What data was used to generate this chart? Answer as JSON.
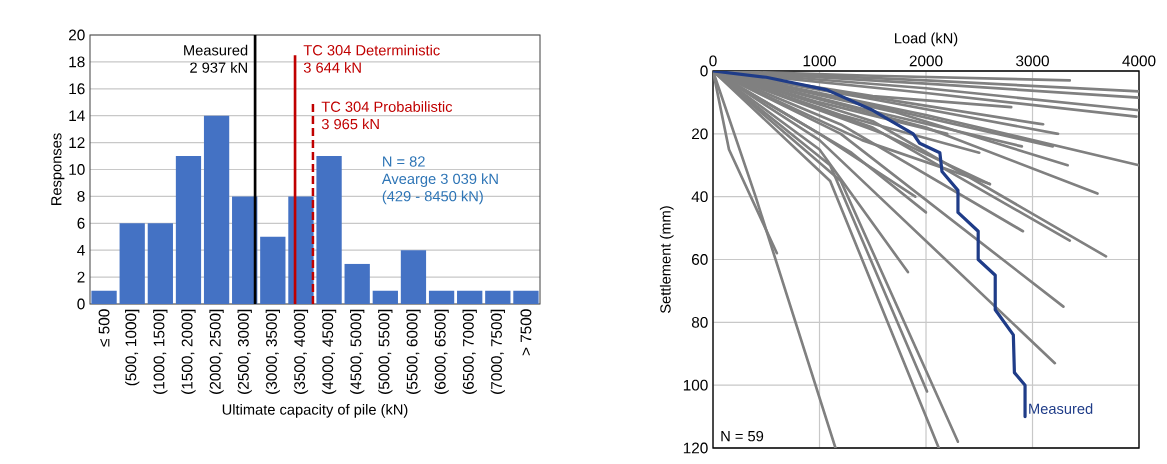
{
  "chart_data": [
    {
      "type": "bar",
      "xlabel": "Ultimate capacity of pile (kN)",
      "ylabel": "Responses",
      "values": [
        1,
        6,
        6,
        11,
        14,
        8,
        5,
        8,
        11,
        3,
        1,
        4,
        1,
        1,
        1,
        1
      ],
      "color": "#4472c4",
      "categories": [
        "≤ 500",
        "(500, 1000]",
        "(1000, 1500]",
        "(1500, 2000]",
        "(2000, 2500]",
        "(2500, 3000]",
        "(3000, 3500]",
        "(3500, 4000]",
        "(4000, 4500]",
        "(4500, 5000]",
        "(5000, 5500]",
        "(5500, 6000]",
        "(6000, 6500]",
        "(6500, 7000]",
        "(7000, 7500]",
        "> 7500"
      ],
      "ylim": [
        0,
        20
      ],
      "yticks": [
        0,
        2,
        4,
        6,
        8,
        10,
        12,
        14,
        16,
        18,
        20
      ],
      "grid": "y",
      "ref_lines": [
        {
          "axis": "x",
          "value": "(2500, 3000]",
          "label": "Measured",
          "color": "#000000",
          "line_style": "solid"
        },
        {
          "axis": "x",
          "value": "(3500, 4000]",
          "label": "TC 304 Deterministic",
          "color": "#c00000",
          "line_style": "solid"
        },
        {
          "axis": "x",
          "value": "(3500, 4000]",
          "label": "TC 304 Probabilistic",
          "color": "#c00000",
          "line_style": "dashed"
        }
      ],
      "annotations": [
        "2 937 kN",
        "3 644 kN",
        "3 965 kN",
        "N = 82",
        "Avearge 3 039 kN",
        "(429 - 8450 kN)"
      ]
    },
    {
      "type": "line",
      "xlabel": "Load (kN)",
      "ylabel": "Settlement  (mm)",
      "xlim": [
        0,
        4000
      ],
      "xticks": [
        0,
        1000,
        2000,
        3000,
        4000
      ],
      "ylim": [
        120,
        0
      ],
      "yticks": [
        0,
        20,
        40,
        60,
        80,
        100,
        120
      ],
      "grid": true,
      "annotations": [
        "N = 59"
      ],
      "series": [
        {
          "color": "#808080",
          "x": [
            0,
            1500,
            3350
          ],
          "values": [
            0,
            1.5,
            3
          ]
        },
        {
          "color": "#808080",
          "x": [
            0,
            2000,
            4000
          ],
          "values": [
            0,
            3,
            6.5
          ]
        },
        {
          "color": "#808080",
          "x": [
            0,
            2000,
            4000
          ],
          "values": [
            0,
            4,
            8.5
          ]
        },
        {
          "color": "#808080",
          "x": [
            0,
            2000,
            4000
          ],
          "values": [
            0,
            5.5,
            12.5
          ]
        },
        {
          "color": "#808080",
          "x": [
            0,
            2000,
            3975
          ],
          "values": [
            0,
            7,
            14.5
          ]
        },
        {
          "color": "#808080",
          "x": [
            0,
            1500,
            2800
          ],
          "values": [
            0,
            8,
            11.5
          ]
        },
        {
          "color": "#808080",
          "x": [
            0,
            1500,
            3240
          ],
          "values": [
            0,
            9,
            20
          ]
        },
        {
          "color": "#808080",
          "x": [
            0,
            1500,
            3190
          ],
          "values": [
            0,
            11,
            24
          ]
        },
        {
          "color": "#808080",
          "x": [
            0,
            1700,
            3330
          ],
          "values": [
            0,
            13,
            30
          ]
        },
        {
          "color": "#808080",
          "x": [
            0,
            2000,
            4000
          ],
          "values": [
            0,
            14,
            30
          ]
        },
        {
          "color": "#808080",
          "x": [
            0,
            2000,
            3610
          ],
          "values": [
            0,
            18,
            39
          ]
        },
        {
          "color": "#808080",
          "x": [
            0,
            1500,
            3350
          ],
          "values": [
            0,
            18,
            54
          ]
        },
        {
          "color": "#808080",
          "x": [
            0,
            1500,
            3690
          ],
          "values": [
            0,
            16,
            59
          ]
        },
        {
          "color": "#808080",
          "x": [
            0,
            1200,
            2910
          ],
          "values": [
            0,
            17,
            51
          ]
        },
        {
          "color": "#808080",
          "x": [
            0,
            1200,
            3290
          ],
          "values": [
            0,
            20,
            75
          ]
        },
        {
          "color": "#808080",
          "x": [
            0,
            1000,
            3210
          ],
          "values": [
            0,
            22,
            93
          ]
        },
        {
          "color": "#808080",
          "x": [
            0,
            1000,
            1830
          ],
          "values": [
            0,
            25,
            64
          ]
        },
        {
          "color": "#808080",
          "x": [
            0,
            1100,
            2010
          ],
          "values": [
            0,
            30,
            102
          ]
        },
        {
          "color": "#808080",
          "x": [
            0,
            1200,
            2300
          ],
          "values": [
            0,
            35,
            118
          ]
        },
        {
          "color": "#808080",
          "x": [
            0,
            1100,
            2120
          ],
          "values": [
            0,
            35,
            120
          ]
        },
        {
          "color": "#808080",
          "x": [
            0,
            150,
            600
          ],
          "values": [
            0,
            25,
            58
          ]
        },
        {
          "color": "#808080",
          "x": [
            0,
            400,
            1150
          ],
          "values": [
            0,
            40,
            120
          ]
        },
        {
          "color": "#808080",
          "x": [
            0,
            1400,
            2600
          ],
          "values": [
            0,
            22,
            36
          ]
        },
        {
          "color": "#808080",
          "x": [
            0,
            1000,
            2200
          ],
          "values": [
            0,
            10,
            20
          ]
        },
        {
          "color": "#808080",
          "x": [
            0,
            1800,
            3100
          ],
          "values": [
            0,
            10,
            17
          ]
        },
        {
          "color": "#808080",
          "x": [
            0,
            1300,
            2000
          ],
          "values": [
            0,
            26,
            45
          ]
        },
        {
          "color": "#808080",
          "x": [
            0,
            1000,
            1900
          ],
          "values": [
            0,
            20,
            40
          ]
        },
        {
          "color": "#808080",
          "x": [
            0,
            1200,
            2500
          ],
          "values": [
            0,
            14,
            26
          ]
        },
        {
          "color": "#808080",
          "x": [
            0,
            1600,
            2600
          ],
          "values": [
            0,
            20,
            36
          ]
        },
        {
          "color": "#808080",
          "x": [
            0,
            1400,
            2900
          ],
          "values": [
            0,
            12,
            24
          ]
        },
        {
          "name": "Measured",
          "color": "#1f3c88",
          "x": [
            0,
            500,
            1070,
            1500,
            1880,
            1940,
            2130,
            2150,
            2300,
            2300,
            2490,
            2490,
            2650,
            2650,
            2820,
            2830,
            2930,
            2930
          ],
          "values": [
            0,
            2,
            6,
            12.5,
            20,
            23,
            26,
            32,
            38,
            45,
            51,
            60,
            65,
            76,
            84,
            96,
            100,
            110
          ]
        }
      ]
    }
  ]
}
